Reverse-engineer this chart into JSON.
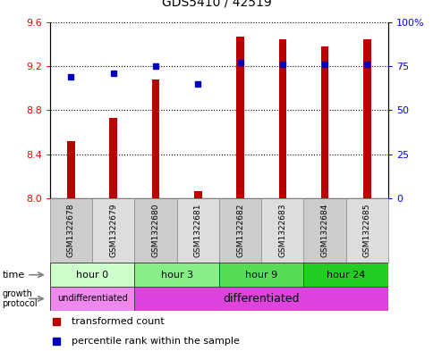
{
  "title": "GDS5410 / 42519",
  "samples": [
    "GSM1322678",
    "GSM1322679",
    "GSM1322680",
    "GSM1322681",
    "GSM1322682",
    "GSM1322683",
    "GSM1322684",
    "GSM1322685"
  ],
  "transformed_count": [
    8.52,
    8.73,
    9.08,
    8.06,
    9.47,
    9.45,
    9.38,
    9.45
  ],
  "percentile_rank": [
    69,
    71,
    75,
    65,
    77,
    76,
    76,
    76
  ],
  "bar_bottom": 8.0,
  "ylim": [
    8.0,
    9.6
  ],
  "y_ticks_left": [
    8.0,
    8.4,
    8.8,
    9.2,
    9.6
  ],
  "y_ticks_right": [
    0,
    25,
    50,
    75,
    100
  ],
  "bar_color": "#bb0000",
  "dot_color": "#0000bb",
  "time_groups": [
    {
      "label": "hour 0",
      "start": 0,
      "end": 2,
      "color": "#ccffcc"
    },
    {
      "label": "hour 3",
      "start": 2,
      "end": 4,
      "color": "#88ee88"
    },
    {
      "label": "hour 9",
      "start": 4,
      "end": 6,
      "color": "#55dd55"
    },
    {
      "label": "hour 24",
      "start": 6,
      "end": 8,
      "color": "#22cc22"
    }
  ],
  "growth_groups": [
    {
      "label": "undifferentiated",
      "start": 0,
      "end": 2,
      "color": "#ee88ee"
    },
    {
      "label": "differentiated",
      "start": 2,
      "end": 8,
      "color": "#dd44dd"
    }
  ],
  "legend_items": [
    {
      "label": "transformed count",
      "color": "#bb0000"
    },
    {
      "label": "percentile rank within the sample",
      "color": "#0000bb"
    }
  ]
}
